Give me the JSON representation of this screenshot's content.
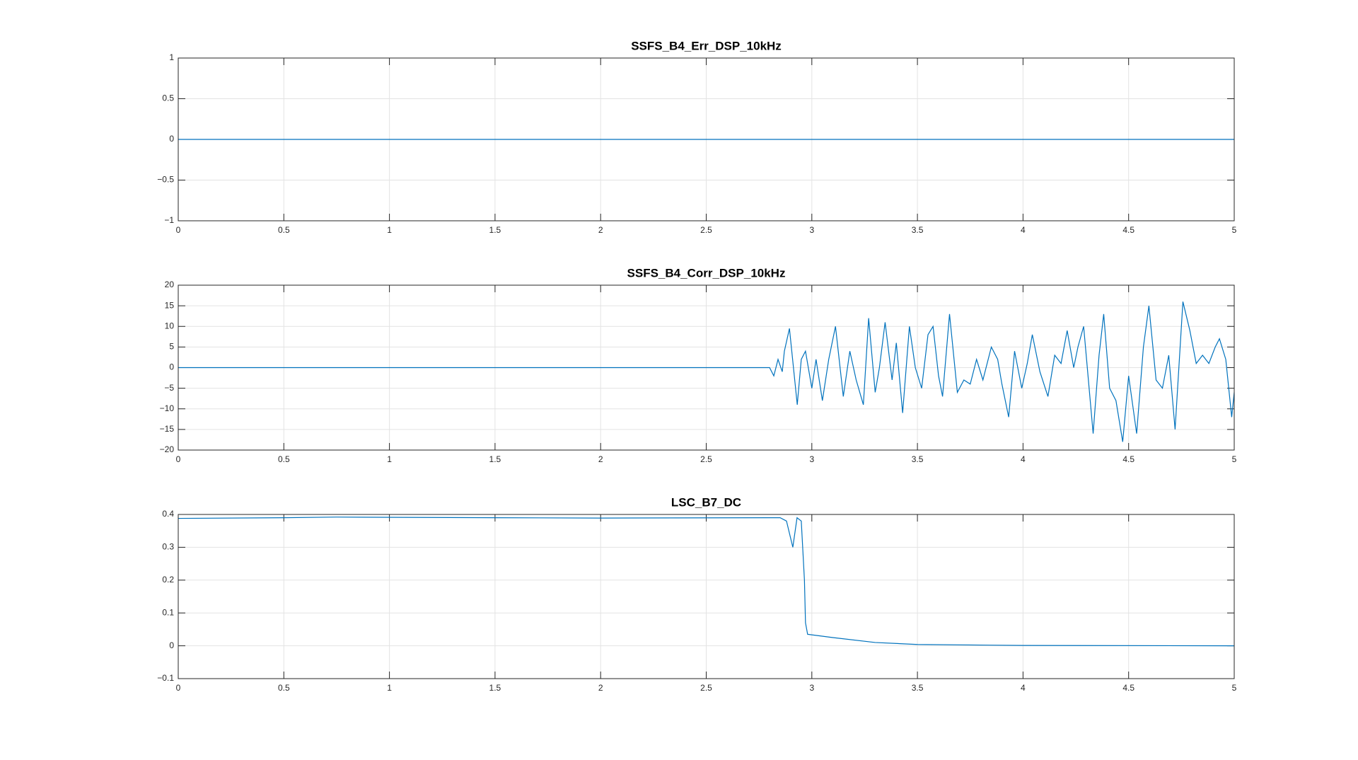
{
  "chart_data": [
    {
      "type": "line",
      "title": "SSFS_B4_Err_DSP_10kHz",
      "color": "#0072bd",
      "grid": true,
      "x": [
        0,
        5
      ],
      "values": [
        0,
        0
      ],
      "xlim": [
        0,
        5
      ],
      "xticks": [
        0,
        0.5,
        1,
        1.5,
        2,
        2.5,
        3,
        3.5,
        4,
        4.5,
        5
      ],
      "ylim": [
        -1,
        1
      ],
      "yticks": [
        {
          "value": -1,
          "label": "−1"
        },
        {
          "value": -0.5,
          "label": "−0.5"
        },
        0,
        0.5,
        1
      ]
    },
    {
      "type": "line",
      "title": "SSFS_B4_Corr_DSP_10kHz",
      "color": "#0072bd",
      "grid": true,
      "x": [
        0,
        2.8,
        2.82,
        2.84,
        2.86,
        2.87,
        2.894,
        2.931,
        2.95,
        2.97,
        3.0,
        3.02,
        3.05,
        3.08,
        3.112,
        3.149,
        3.18,
        3.21,
        3.244,
        3.269,
        3.3,
        3.32,
        3.347,
        3.38,
        3.4,
        3.43,
        3.462,
        3.49,
        3.52,
        3.55,
        3.574,
        3.6,
        3.619,
        3.652,
        3.689,
        3.72,
        3.75,
        3.78,
        3.81,
        3.85,
        3.88,
        3.9,
        3.932,
        3.96,
        3.994,
        4.02,
        4.044,
        4.08,
        4.118,
        4.15,
        4.18,
        4.209,
        4.24,
        4.26,
        4.287,
        4.332,
        4.36,
        4.382,
        4.41,
        4.44,
        4.472,
        4.5,
        4.538,
        4.57,
        4.596,
        4.63,
        4.66,
        4.69,
        4.72,
        4.757,
        4.79,
        4.82,
        4.85,
        4.88,
        4.91,
        4.93,
        4.96,
        4.988,
        5
      ],
      "values": [
        0,
        0,
        -2,
        2,
        -1,
        4,
        9.5,
        -9,
        2,
        4,
        -5,
        2,
        -8,
        2,
        10,
        -7,
        4,
        -3,
        -9,
        12,
        -6,
        0,
        11,
        -3,
        6,
        -11,
        10,
        0,
        -5,
        8,
        10,
        -2,
        -7,
        13,
        -6,
        -3,
        -4,
        2,
        -3,
        5,
        2,
        -4,
        -12,
        4,
        -5,
        1,
        8,
        -1,
        -7,
        3,
        1,
        9,
        0,
        5,
        10,
        -16,
        3,
        13,
        -5,
        -8,
        -18,
        -2,
        -16,
        5,
        15,
        -3,
        -5,
        3,
        -15,
        16,
        9,
        1,
        3,
        1,
        5,
        7,
        2,
        -12,
        -6
      ],
      "xlim": [
        0,
        5
      ],
      "xticks": [
        0,
        0.5,
        1,
        1.5,
        2,
        2.5,
        3,
        3.5,
        4,
        4.5,
        5
      ],
      "ylim": [
        -20,
        20
      ],
      "yticks": [
        {
          "value": -20,
          "label": "−20"
        },
        {
          "value": -15,
          "label": "−15"
        },
        {
          "value": -10,
          "label": "−10"
        },
        {
          "value": -5,
          "label": "−5"
        },
        0,
        5,
        10,
        15,
        20
      ]
    },
    {
      "type": "line",
      "title": "LSC_B7_DC",
      "color": "#0072bd",
      "grid": true,
      "x": [
        0,
        0.5,
        0.75,
        1.5,
        2.0,
        2.8,
        2.85,
        2.88,
        2.91,
        2.93,
        2.95,
        2.965,
        2.97,
        2.98,
        3.1,
        3.3,
        3.5,
        4,
        5
      ],
      "values": [
        0.388,
        0.39,
        0.392,
        0.39,
        0.389,
        0.39,
        0.39,
        0.38,
        0.3,
        0.39,
        0.38,
        0.2,
        0.07,
        0.035,
        0.025,
        0.01,
        0.004,
        0.001,
        0
      ],
      "xlim": [
        0,
        5
      ],
      "xticks": [
        0,
        0.5,
        1,
        1.5,
        2,
        2.5,
        3,
        3.5,
        4,
        4.5,
        5
      ],
      "ylim": [
        -0.1,
        0.4
      ],
      "yticks": [
        {
          "value": -0.1,
          "label": "−0.1"
        },
        0,
        0.1,
        0.2,
        0.3,
        0.4
      ]
    }
  ]
}
